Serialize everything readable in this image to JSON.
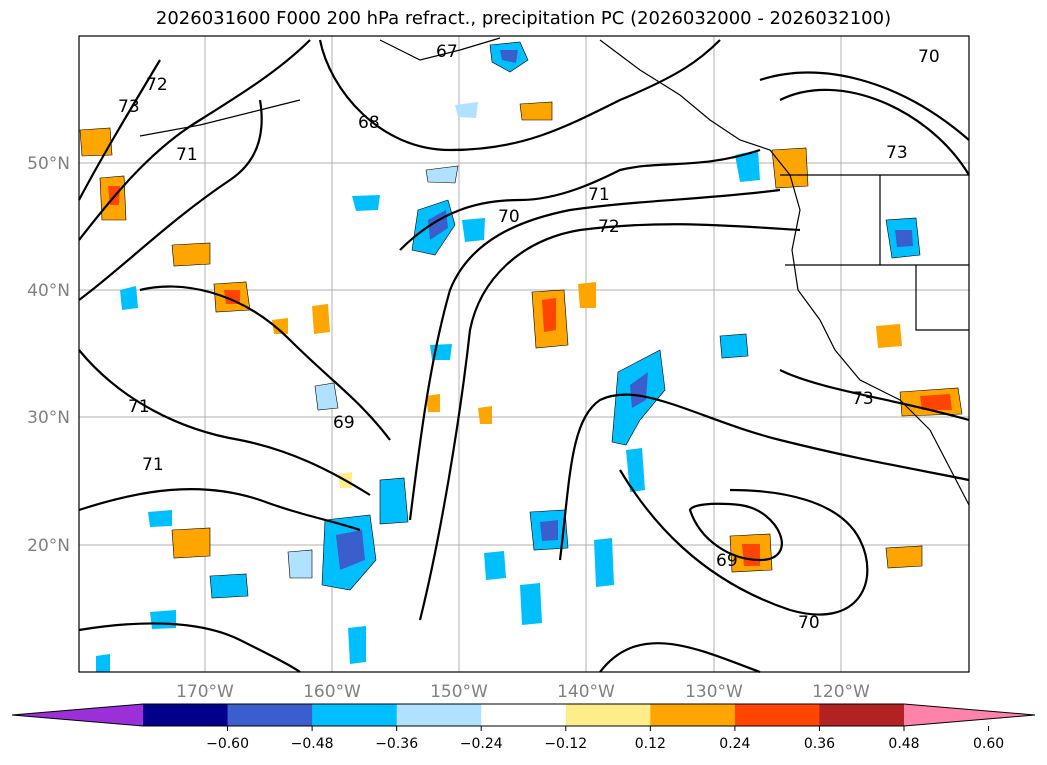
{
  "title": "2026031600 F000 200 hPa refract., precipitation PC (2026032000 - 2026032100)",
  "map": {
    "lat_labels": [
      "50°N",
      "40°N",
      "30°N",
      "20°N"
    ],
    "lon_labels": [
      "170°W",
      "160°W",
      "150°W",
      "140°W",
      "130°W",
      "120°W"
    ],
    "contour_labels": [
      "67",
      "68",
      "69",
      "69",
      "70",
      "70",
      "70",
      "71",
      "71",
      "71",
      "71",
      "72",
      "72",
      "73",
      "73",
      "73"
    ]
  },
  "colorbar": {
    "ticks": [
      "−0.60",
      "−0.48",
      "−0.36",
      "−0.24",
      "−0.12",
      "0.12",
      "0.24",
      "0.36",
      "0.48",
      "0.60"
    ],
    "colors": [
      "#9b30d9",
      "#00008b",
      "#3a5fcd",
      "#00bfff",
      "#b0e2ff",
      "#ffffff",
      "#ffec8b",
      "#ffa500",
      "#ff4500",
      "#b22222",
      "#ff82ab"
    ]
  }
}
